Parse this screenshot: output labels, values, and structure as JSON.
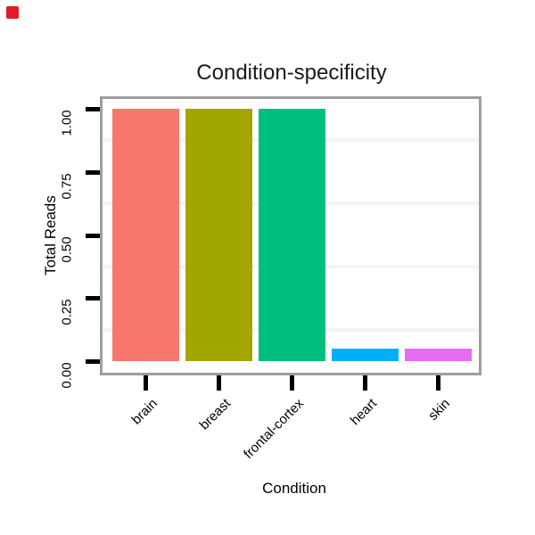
{
  "record_indicator": {
    "color": "#e01b24"
  },
  "chart_data": {
    "type": "bar",
    "title": "Condition-specificity",
    "xlabel": "Condition",
    "ylabel": "Total Reads",
    "categories": [
      "brain",
      "breast",
      "frontal-cortex",
      "heart",
      "skin"
    ],
    "values": [
      1.0,
      1.0,
      1.0,
      0.05,
      0.05
    ],
    "bar_colors": [
      "#f8766d",
      "#a3a500",
      "#00bf7d",
      "#00b0f6",
      "#e76bf3"
    ],
    "y_ticks": [
      {
        "label": "0.00",
        "value": 0.0
      },
      {
        "label": "0.25",
        "value": 0.25
      },
      {
        "label": "0.50",
        "value": 0.5
      },
      {
        "label": "0.75",
        "value": 0.75
      },
      {
        "label": "1.00",
        "value": 1.0
      }
    ],
    "ylim": [
      0,
      1.05
    ],
    "minor_gridlines": [
      0.125,
      0.375,
      0.625,
      0.875
    ],
    "grid": "minor-horizontal-only",
    "legend": "none",
    "panel_border_color": "#9e9e9e",
    "gridline_color": "#f4f4f4",
    "tick_color": "#000000",
    "text_color": "#000000",
    "background": "#ffffff"
  }
}
